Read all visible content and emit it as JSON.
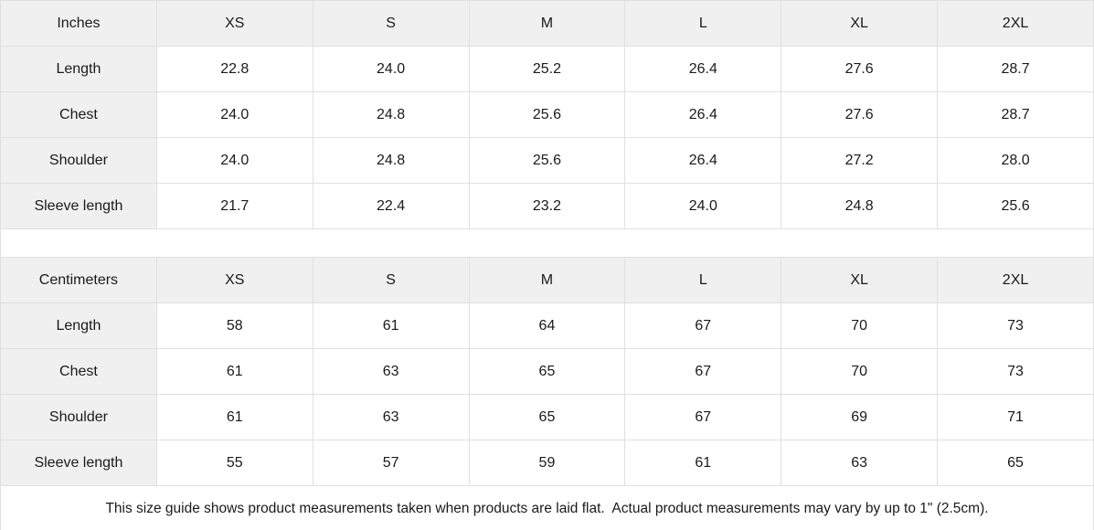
{
  "colors": {
    "header_bg": "#f0f0f0",
    "label_bg": "#f0f0f0",
    "cell_bg": "#ffffff",
    "border": "#e0e0e0",
    "text": "#1a1a1a"
  },
  "chart_data": [
    {
      "type": "table",
      "unit_label": "Inches",
      "size_columns": [
        "XS",
        "S",
        "M",
        "L",
        "XL",
        "2XL"
      ],
      "rows": [
        {
          "label": "Length",
          "values": [
            "22.8",
            "24.0",
            "25.2",
            "26.4",
            "27.6",
            "28.7"
          ]
        },
        {
          "label": "Chest",
          "values": [
            "24.0",
            "24.8",
            "25.6",
            "26.4",
            "27.6",
            "28.7"
          ]
        },
        {
          "label": "Shoulder",
          "values": [
            "24.0",
            "24.8",
            "25.6",
            "26.4",
            "27.2",
            "28.0"
          ]
        },
        {
          "label": "Sleeve length",
          "values": [
            "21.7",
            "22.4",
            "23.2",
            "24.0",
            "24.8",
            "25.6"
          ]
        }
      ]
    },
    {
      "type": "table",
      "unit_label": "Centimeters",
      "size_columns": [
        "XS",
        "S",
        "M",
        "L",
        "XL",
        "2XL"
      ],
      "rows": [
        {
          "label": "Length",
          "values": [
            "58",
            "61",
            "64",
            "67",
            "70",
            "73"
          ]
        },
        {
          "label": "Chest",
          "values": [
            "61",
            "63",
            "65",
            "67",
            "70",
            "73"
          ]
        },
        {
          "label": "Shoulder",
          "values": [
            "61",
            "63",
            "65",
            "67",
            "69",
            "71"
          ]
        },
        {
          "label": "Sleeve length",
          "values": [
            "55",
            "57",
            "59",
            "61",
            "63",
            "65"
          ]
        }
      ]
    }
  ],
  "footnote": "This size guide shows product measurements taken when products are laid flat.  Actual product measurements may vary by up to 1\" (2.5cm)."
}
